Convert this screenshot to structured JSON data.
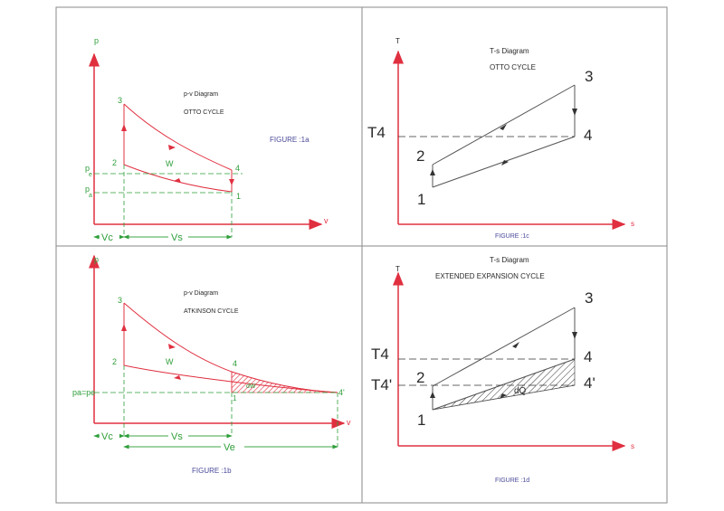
{
  "colors": {
    "axis": "#e03040",
    "label": "#2f9e3a",
    "curve": "#e03040",
    "ts_line": "#555555",
    "caption": "#4a4a9a",
    "frame": "#8a8a8a"
  },
  "panel_1a": {
    "axis_p": "p",
    "axis_v": "v",
    "title_line1": "p-v  Diagram",
    "title_line2": "OTTO CYCLE",
    "figure": "FIGURE :1a",
    "pt1": "1",
    "pt2": "2",
    "pt3": "3",
    "pt4": "4",
    "work": "W",
    "pe_main": "p",
    "pe_sub": "e",
    "pa_main": "p",
    "pa_sub": "a",
    "vc": "Vc",
    "vs": "Vs"
  },
  "panel_1b": {
    "axis_p": "p",
    "axis_v": "v",
    "title_line1": "p-v  Diagram",
    "title_line2": "ATKINSON  CYCLE",
    "figure": "FIGURE :1b",
    "pt1": "1",
    "pt2": "2",
    "pt3": "3",
    "pt4": "4",
    "pt4p": "4'",
    "work": "W",
    "dw": "dW",
    "pae_label": "pa=pe",
    "vc": "Vc",
    "vs": "Vs",
    "ve": "Ve"
  },
  "panel_1c": {
    "axis_t": "T",
    "axis_s": "s",
    "title_line1": "T-s   Diagram",
    "title_line2": "OTTO CYCLE",
    "figure": "FIGURE :1c",
    "t4": "T4",
    "pt1": "1",
    "pt2": "2",
    "pt3": "3",
    "pt4": "4"
  },
  "panel_1d": {
    "axis_t": "T",
    "axis_s": "s",
    "title_line1": "T-s   Diagram",
    "title_line2": "EXTENDED EXPANSION CYCLE",
    "figure": "FIGURE :1d",
    "t4": "T4",
    "t4p": "T4'",
    "pt1": "1",
    "pt2": "2",
    "pt3": "3",
    "pt4": "4",
    "pt4p": "4'",
    "dq": "dQ"
  }
}
